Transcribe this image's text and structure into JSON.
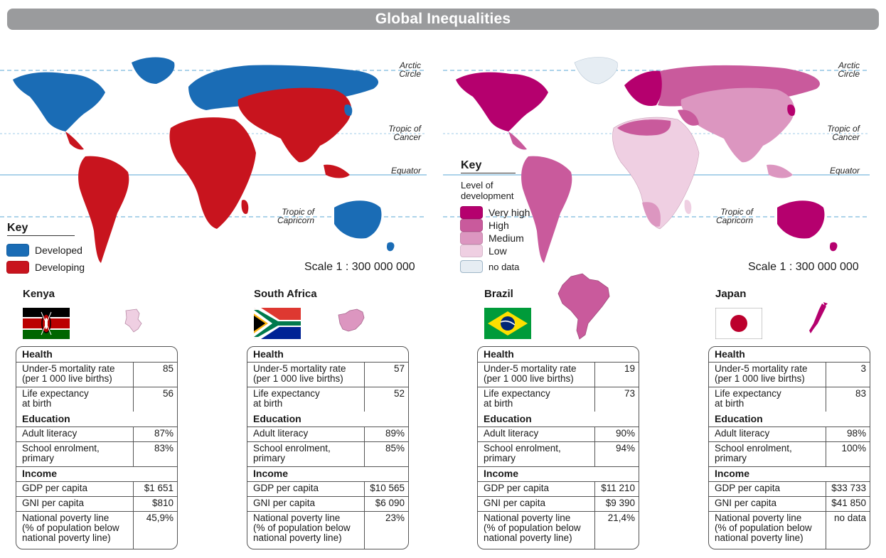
{
  "title": "Global Inequalities",
  "map_labels": {
    "arctic": [
      "Arctic",
      "Circle"
    ],
    "cancer": [
      "Tropic of",
      "Cancer"
    ],
    "equator": "Equator",
    "capricorn": [
      "Tropic of",
      "Capricorn"
    ]
  },
  "left_map": {
    "key_title": "Key",
    "legend": [
      {
        "label": "Developed",
        "color": "#1a6cb5"
      },
      {
        "label": "Developing",
        "color": "#c8141e"
      }
    ],
    "scale": "Scale 1 : 300 000 000"
  },
  "right_map": {
    "key_title": "Key",
    "key_subtitle": [
      "Level of",
      "development"
    ],
    "legend": [
      {
        "label": "Very high",
        "color": "#b5006e"
      },
      {
        "label": "High",
        "color": "#c95a9c"
      },
      {
        "label": "Medium",
        "color": "#dc96c0"
      },
      {
        "label": "Low",
        "color": "#efcfe2"
      },
      {
        "label": "no data",
        "color": "#e6edf3"
      }
    ],
    "scale": "Scale 1 : 300 000 000"
  },
  "colors": {
    "ocean_line": "#5aa7d6",
    "developed": "#1a6cb5",
    "developing": "#c8141e"
  },
  "table_labels": {
    "health": "Health",
    "u5": [
      "Under-5 mortality rate",
      "(per 1 000 live births)"
    ],
    "life": [
      "Life expectancy",
      "at birth"
    ],
    "education": "Education",
    "literacy": "Adult literacy",
    "school": [
      "School enrolment,",
      "primary"
    ],
    "income": "Income",
    "gdp": "GDP per capita",
    "gni": "GNI per capita",
    "poverty": [
      "National poverty line",
      "(% of population below",
      "national poverty line)"
    ]
  },
  "countries": [
    {
      "name": "Kenya",
      "flag_icon": "kenya-flag-icon",
      "outline_color": "#efcfe2",
      "u5": "85",
      "life": "56",
      "literacy": "87%",
      "school": "83%",
      "gdp": "$1 651",
      "gni": "$810",
      "poverty": "45,9%"
    },
    {
      "name": "South Africa",
      "flag_icon": "south-africa-flag-icon",
      "outline_color": "#dc96c0",
      "u5": "57",
      "life": "52",
      "literacy": "89%",
      "school": "85%",
      "gdp": "$10 565",
      "gni": "$6 090",
      "poverty": "23%"
    },
    {
      "name": "Brazil",
      "flag_icon": "brazil-flag-icon",
      "outline_color": "#c95a9c",
      "u5": "19",
      "life": "73",
      "literacy": "90%",
      "school": "94%",
      "gdp": "$11 210",
      "gni": "$9 390",
      "poverty": "21,4%"
    },
    {
      "name": "Japan",
      "flag_icon": "japan-flag-icon",
      "outline_color": "#b5006e",
      "u5": "3",
      "life": "83",
      "literacy": "98%",
      "school": "100%",
      "gdp": "$33 733",
      "gni": "$41 850",
      "poverty": "no data"
    }
  ]
}
